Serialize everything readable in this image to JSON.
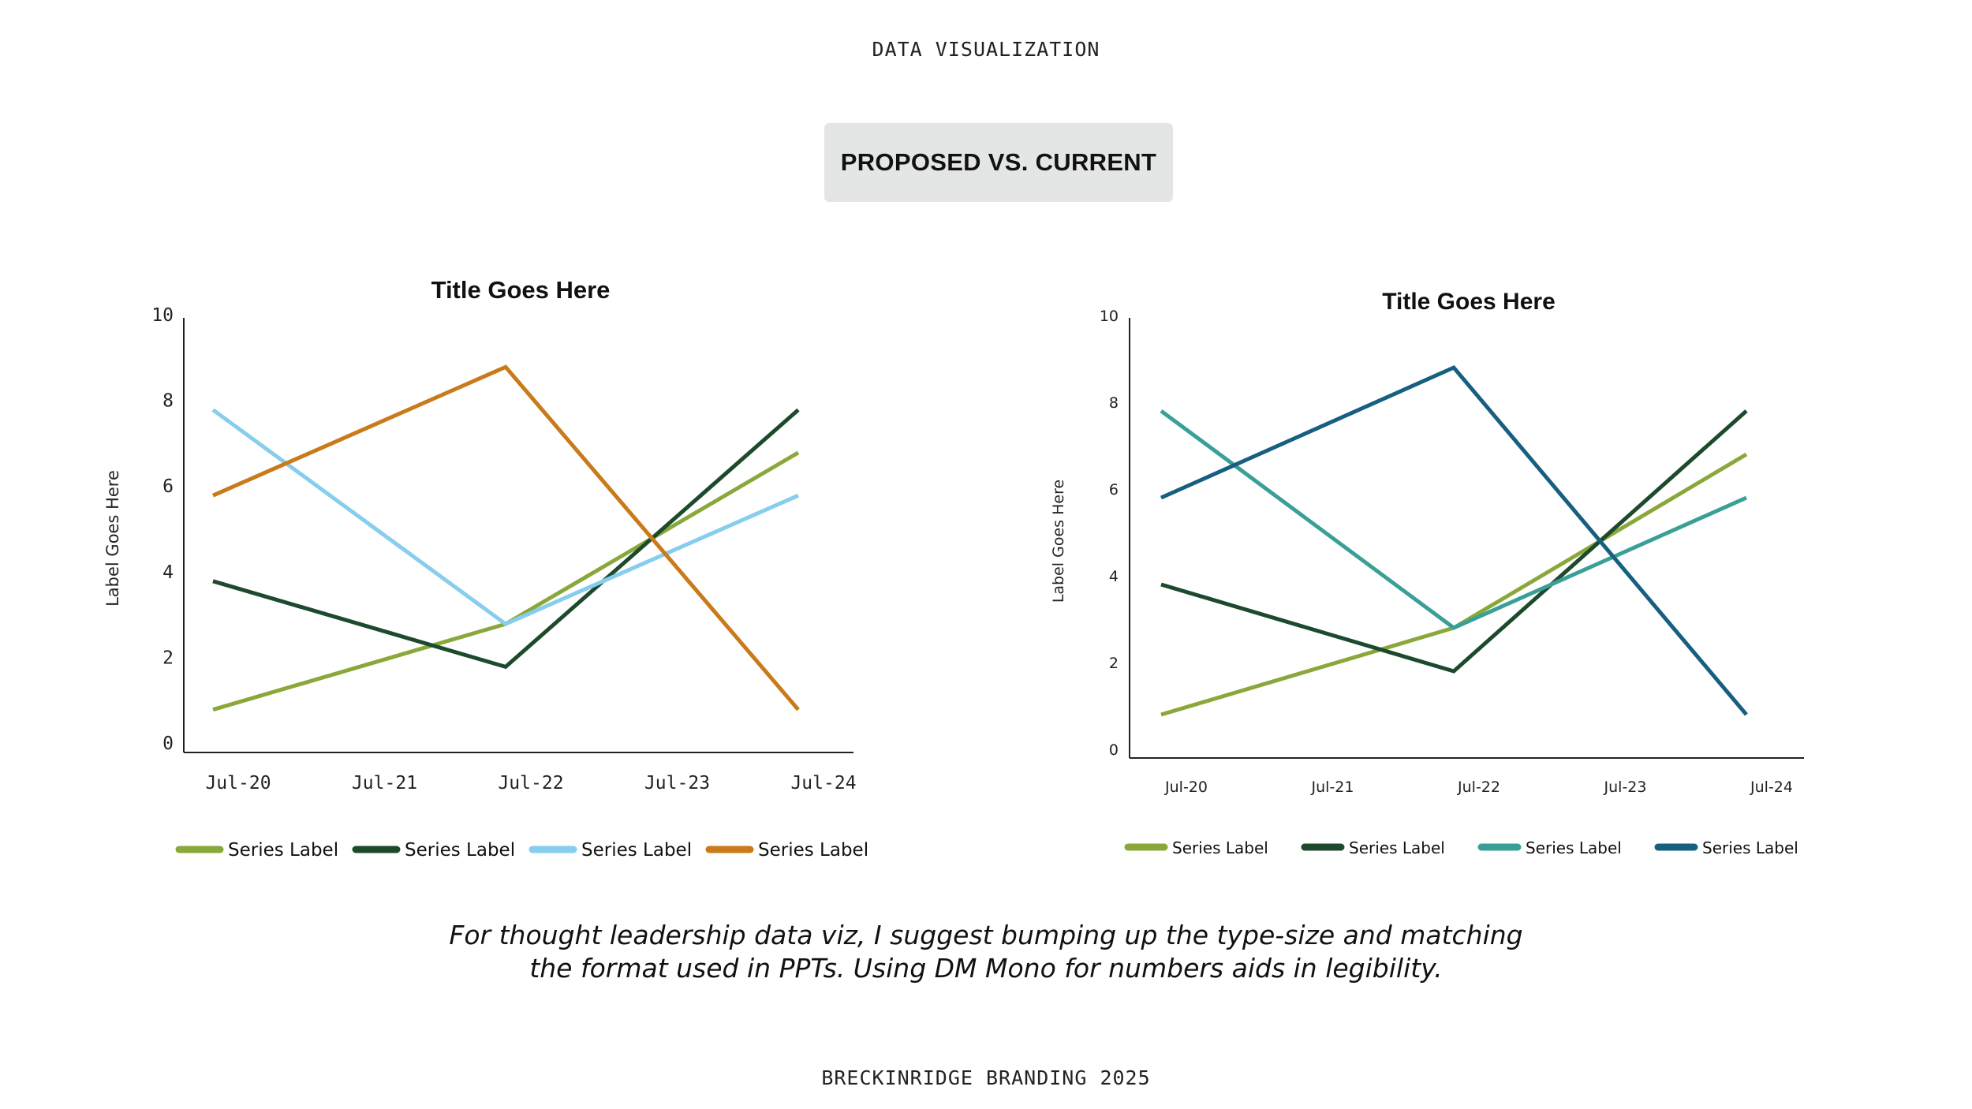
{
  "header": {
    "eyebrow": "DATA VISUALIZATION",
    "badge": "PROPOSED VS. CURRENT"
  },
  "caption": {
    "line1": "For thought leadership data viz, I suggest bumping up the type-size and matching",
    "line2": "the format used in PPTs. Using DM Mono for numbers aids in legibility."
  },
  "footer": {
    "text": "BRECKINRIDGE BRANDING 2025"
  },
  "chart_data": [
    {
      "type": "line",
      "title": "Title Goes Here",
      "xlabel": "",
      "ylabel": "Label Goes Here",
      "categories": [
        "Jul-20",
        "Jul-21",
        "Jul-22",
        "Jul-23",
        "Jul-24"
      ],
      "ylim": [
        0,
        10
      ],
      "yticks": [
        0,
        2,
        4,
        6,
        8,
        10
      ],
      "grid": false,
      "legend_position": "bottom",
      "series": [
        {
          "name": "Series Label",
          "color": "#8aa83a",
          "x": [
            "Jul-20",
            "Jul-22",
            "Jul-23",
            "Jul-24"
          ],
          "values": [
            1,
            3,
            5,
            7
          ]
        },
        {
          "name": "Series Label",
          "color": "#1d4a2c",
          "x": [
            "Jul-20",
            "Jul-22",
            "Jul-23",
            "Jul-24"
          ],
          "values": [
            4,
            2,
            5,
            8
          ]
        },
        {
          "name": "Series Label",
          "color": "#86cdee",
          "x": [
            "Jul-20",
            "Jul-22",
            "Jul-23",
            "Jul-24"
          ],
          "values": [
            8,
            3,
            4.5,
            6
          ]
        },
        {
          "name": "Series Label",
          "color": "#c97a1b",
          "x": [
            "Jul-20",
            "Jul-22",
            "Jul-23",
            "Jul-24"
          ],
          "values": [
            6,
            9,
            5,
            1
          ]
        }
      ]
    },
    {
      "type": "line",
      "title": "Title Goes Here",
      "xlabel": "",
      "ylabel": "Label Goes Here",
      "categories": [
        "Jul-20",
        "Jul-21",
        "Jul-22",
        "Jul-23",
        "Jul-24"
      ],
      "ylim": [
        0,
        10
      ],
      "yticks": [
        0,
        2,
        4,
        6,
        8,
        10
      ],
      "grid": false,
      "legend_position": "bottom",
      "series": [
        {
          "name": "Series Label",
          "color": "#8aa83a",
          "x": [
            "Jul-20",
            "Jul-22",
            "Jul-23",
            "Jul-24"
          ],
          "values": [
            1,
            3,
            5,
            7
          ]
        },
        {
          "name": "Series Label",
          "color": "#1d4a2c",
          "x": [
            "Jul-20",
            "Jul-22",
            "Jul-23",
            "Jul-24"
          ],
          "values": [
            4,
            2,
            5,
            8
          ]
        },
        {
          "name": "Series Label",
          "color": "#3a9f97",
          "x": [
            "Jul-20",
            "Jul-22",
            "Jul-23",
            "Jul-24"
          ],
          "values": [
            8,
            3,
            4.5,
            6
          ]
        },
        {
          "name": "Series Label",
          "color": "#175f80",
          "x": [
            "Jul-20",
            "Jul-22",
            "Jul-23",
            "Jul-24"
          ],
          "values": [
            6,
            9,
            5,
            1
          ]
        }
      ]
    }
  ]
}
